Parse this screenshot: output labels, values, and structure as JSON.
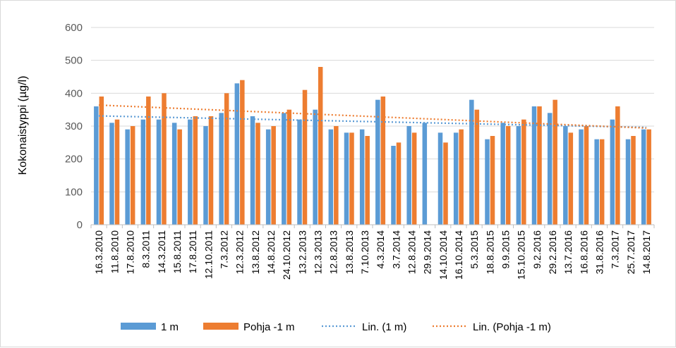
{
  "chart_data": {
    "type": "bar",
    "title": "",
    "xlabel": "",
    "ylabel": "Kokonaistyppi (µg/l)",
    "ylim": [
      0,
      600
    ],
    "yticks": [
      0,
      100,
      200,
      300,
      400,
      500,
      600
    ],
    "grid": true,
    "legend_position": "bottom",
    "categories": [
      "16.3.2010",
      "11.8.2010",
      "17.8.2010",
      "8.3.2011",
      "14.3.2011",
      "15.8.2011",
      "17.8.2011",
      "12.10.2011",
      "7.3.2012",
      "12.3.2012",
      "13.8.2012",
      "14.8.2012",
      "24.10.2012",
      "13.2.2013",
      "12.3.2013",
      "12.8.2013",
      "13.8.2013",
      "7.10.2013",
      "4.3.2014",
      "3.7.2014",
      "12.8.2014",
      "29.9.2014",
      "14.10.2014",
      "16.10.2014",
      "5.3.2015",
      "18.8.2015",
      "9.9.2015",
      "15.10.2015",
      "9.2.2016",
      "29.2.2016",
      "13.7.2016",
      "16.8.2016",
      "31.8.2016",
      "7.3.2017",
      "25.7.2017",
      "14.8.2017"
    ],
    "series": [
      {
        "name": "1 m",
        "color": "#5b9bd5",
        "values": [
          360,
          310,
          290,
          320,
          320,
          310,
          320,
          300,
          340,
          430,
          330,
          290,
          340,
          320,
          350,
          290,
          280,
          290,
          380,
          240,
          300,
          310,
          280,
          280,
          380,
          260,
          310,
          300,
          360,
          340,
          300,
          290,
          260,
          320,
          260,
          290
        ]
      },
      {
        "name": "Pohja -1 m",
        "color": "#ed7d31",
        "values": [
          390,
          320,
          300,
          390,
          400,
          290,
          330,
          330,
          400,
          440,
          310,
          300,
          350,
          410,
          480,
          300,
          280,
          270,
          390,
          250,
          280,
          null,
          250,
          290,
          350,
          270,
          300,
          320,
          360,
          380,
          280,
          300,
          260,
          360,
          270,
          290
        ]
      }
    ],
    "trendlines": [
      {
        "name": "Lin. (1 m)",
        "color": "#5b9bd5",
        "start": 331,
        "end": 296
      },
      {
        "name": "Lin. (Pohja -1 m)",
        "color": "#ed7d31",
        "start": 364,
        "end": 294
      }
    ]
  }
}
